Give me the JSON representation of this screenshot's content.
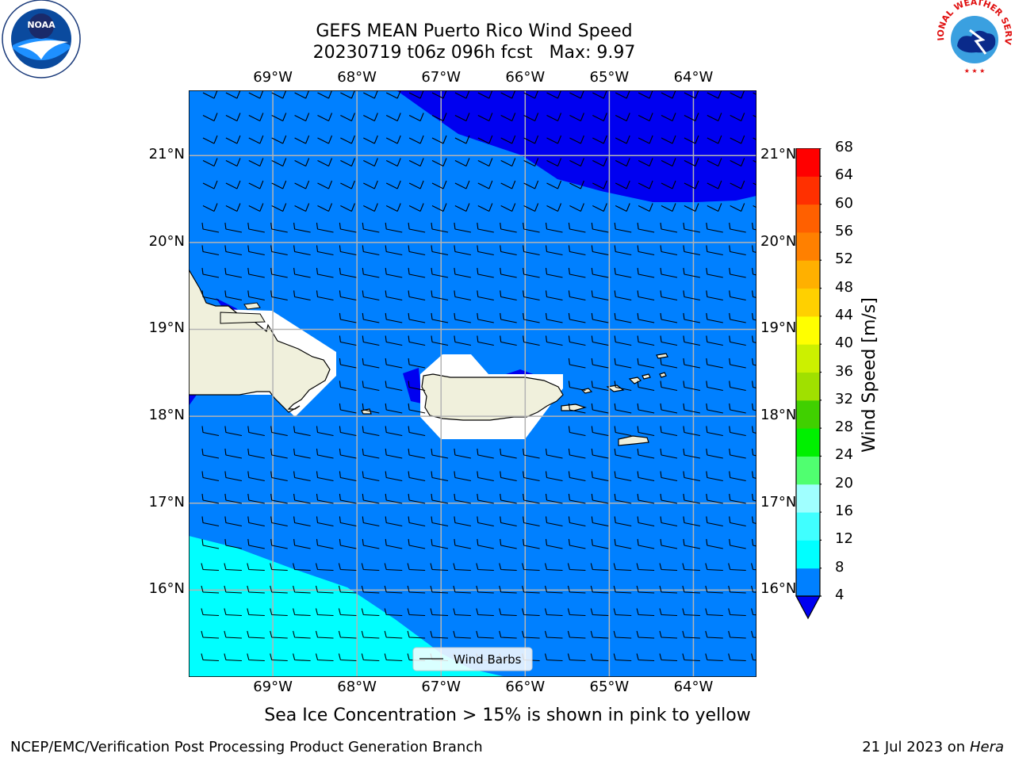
{
  "header": {
    "title_line1": "GEFS MEAN Puerto Rico Wind Speed",
    "title_line2": "20230719 t06z 096h fcst   Max: 9.97"
  },
  "logos": {
    "left_icon": "noaa-logo",
    "left_text": "NOAA",
    "right_icon": "nws-logo",
    "right_text": "NATIONAL WEATHER SERVICE"
  },
  "map": {
    "lon_range": [
      -70.0,
      -63.25
    ],
    "lat_range": [
      15.0,
      21.75
    ],
    "lon_ticks": [
      {
        "value": -69,
        "label": "69°W"
      },
      {
        "value": -68,
        "label": "68°W"
      },
      {
        "value": -67,
        "label": "67°W"
      },
      {
        "value": -66,
        "label": "66°W"
      },
      {
        "value": -65,
        "label": "65°W"
      },
      {
        "value": -64,
        "label": "64°W"
      }
    ],
    "lat_ticks": [
      {
        "value": 21,
        "label": "21°N"
      },
      {
        "value": 20,
        "label": "20°N"
      },
      {
        "value": 19,
        "label": "19°N"
      },
      {
        "value": 18,
        "label": "18°N"
      },
      {
        "value": 17,
        "label": "17°N"
      },
      {
        "value": 16,
        "label": "16°N"
      }
    ],
    "grid": true,
    "colors": {
      "band_4_8": "#0080ff",
      "band_8_12": "#00ffff",
      "below_4": "#0000f0",
      "land": "#f0f0dc",
      "masked": "#ffffff",
      "grid": "#b4b4b4"
    },
    "legend": {
      "label": "Wind Barbs",
      "position": "lower-center"
    }
  },
  "colorbar": {
    "label": "Wind Speed [m/s]",
    "levels": [
      4,
      8,
      12,
      16,
      20,
      24,
      28,
      32,
      36,
      40,
      44,
      48,
      52,
      56,
      60,
      64,
      68
    ],
    "colors": [
      "#0080ff",
      "#00ffff",
      "#40ffff",
      "#a0ffff",
      "#50ff70",
      "#00f000",
      "#40d000",
      "#a0e000",
      "#ccf000",
      "#ffff00",
      "#ffd000",
      "#ffb000",
      "#ff8000",
      "#ff6000",
      "#ff3000",
      "#ff0000"
    ],
    "under_color": "#0000f0",
    "extend": "min"
  },
  "caption": "Sea Ice Concentration > 15% is shown in pink to yellow",
  "footer": {
    "left": "NCEP/EMC/Verification Post Processing Product Generation Branch",
    "right_prefix": "21 Jul 2023 on ",
    "right_host": "Hera"
  }
}
